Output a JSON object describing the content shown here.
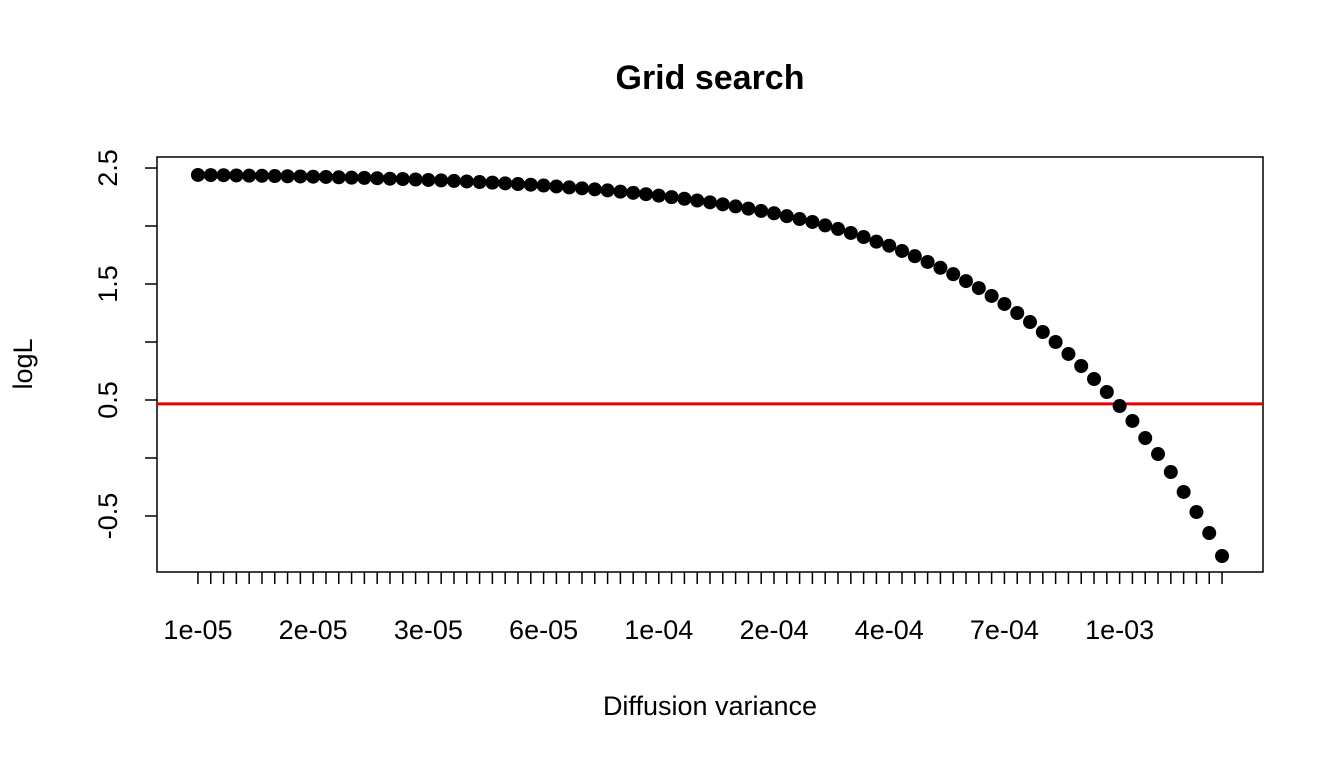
{
  "chart_data": {
    "type": "scatter",
    "title": "Grid search",
    "x_label": "Diffusion variance",
    "y_label": "logL",
    "categories": [
      "1e-05",
      null,
      null,
      null,
      null,
      null,
      null,
      null,
      null,
      "2e-05",
      null,
      null,
      null,
      null,
      null,
      null,
      null,
      null,
      "3e-05",
      null,
      null,
      null,
      null,
      null,
      null,
      null,
      null,
      "6e-05",
      null,
      null,
      null,
      null,
      null,
      null,
      null,
      null,
      "1e-04",
      null,
      null,
      null,
      null,
      null,
      null,
      null,
      null,
      "2e-04",
      null,
      null,
      null,
      null,
      null,
      null,
      null,
      null,
      "4e-04",
      null,
      null,
      null,
      null,
      null,
      null,
      null,
      null,
      "7e-04",
      null,
      null,
      null,
      null,
      null,
      null,
      null,
      null,
      "1e-03",
      null,
      null,
      null,
      null,
      null,
      null,
      null,
      null
    ],
    "values": [
      2.44,
      2.439,
      2.438,
      2.436,
      2.434,
      2.433,
      2.431,
      2.429,
      2.427,
      2.425,
      2.423,
      2.42,
      2.417,
      2.415,
      2.412,
      2.408,
      2.405,
      2.401,
      2.397,
      2.393,
      2.389,
      2.384,
      2.379,
      2.374,
      2.368,
      2.362,
      2.356,
      2.349,
      2.341,
      2.333,
      2.325,
      2.316,
      2.307,
      2.296,
      2.286,
      2.274,
      2.262,
      2.249,
      2.235,
      2.22,
      2.204,
      2.187,
      2.169,
      2.15,
      2.13,
      2.11,
      2.085,
      2.06,
      2.035,
      2.005,
      1.975,
      1.94,
      1.905,
      1.865,
      1.83,
      1.785,
      1.74,
      1.69,
      1.64,
      1.585,
      1.525,
      1.465,
      1.397,
      1.328,
      1.25,
      1.172,
      1.086,
      1.0,
      0.897,
      0.793,
      0.681,
      0.569,
      0.448,
      0.319,
      0.172,
      0.034,
      -0.121,
      -0.293,
      -0.466,
      -0.647,
      -0.845
    ],
    "color": "#000000",
    "ylim": [
      -0.983,
      2.595
    ],
    "yticks": [
      -0.5,
      0.5,
      1.5,
      2.5
    ],
    "yticks_minor": [
      0,
      1,
      2
    ],
    "hline": {
      "value": 0.466,
      "color": "#e60000"
    }
  }
}
